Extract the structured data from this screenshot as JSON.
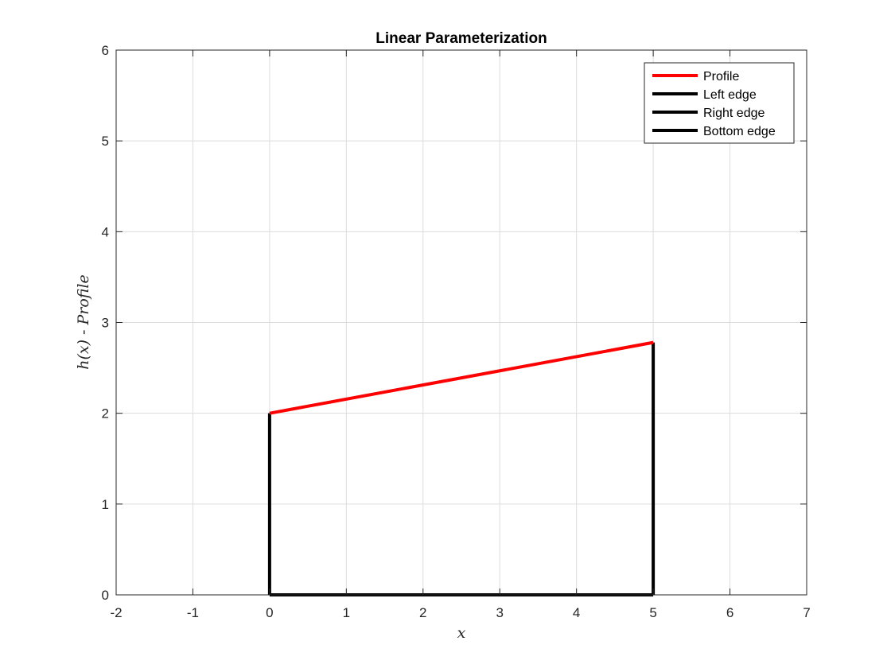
{
  "chart_data": {
    "type": "line",
    "title": "Linear Parameterization",
    "xlabel": "x",
    "ylabel": "h(x) - Profile",
    "xlim": [
      -2,
      7
    ],
    "ylim": [
      0,
      6
    ],
    "x_ticks": [
      -2,
      -1,
      0,
      1,
      2,
      3,
      4,
      5,
      6,
      7
    ],
    "y_ticks": [
      0,
      1,
      2,
      3,
      4,
      5,
      6
    ],
    "x_tick_labels": [
      "-2",
      "-1",
      "0",
      "1",
      "2",
      "3",
      "4",
      "5",
      "6",
      "7"
    ],
    "y_tick_labels": [
      "0",
      "1",
      "2",
      "3",
      "4",
      "5",
      "6"
    ],
    "grid": true,
    "legend_position": "top-right",
    "series": [
      {
        "name": "Profile",
        "color": "#ff0000",
        "x": [
          0,
          5
        ],
        "y": [
          2,
          2.78
        ]
      },
      {
        "name": "Left edge",
        "color": "#000000",
        "x": [
          0,
          0
        ],
        "y": [
          0,
          2
        ]
      },
      {
        "name": "Right edge",
        "color": "#000000",
        "x": [
          5,
          5
        ],
        "y": [
          0,
          2.78
        ]
      },
      {
        "name": "Bottom edge",
        "color": "#000000",
        "x": [
          0,
          5
        ],
        "y": [
          0,
          0
        ]
      }
    ]
  }
}
